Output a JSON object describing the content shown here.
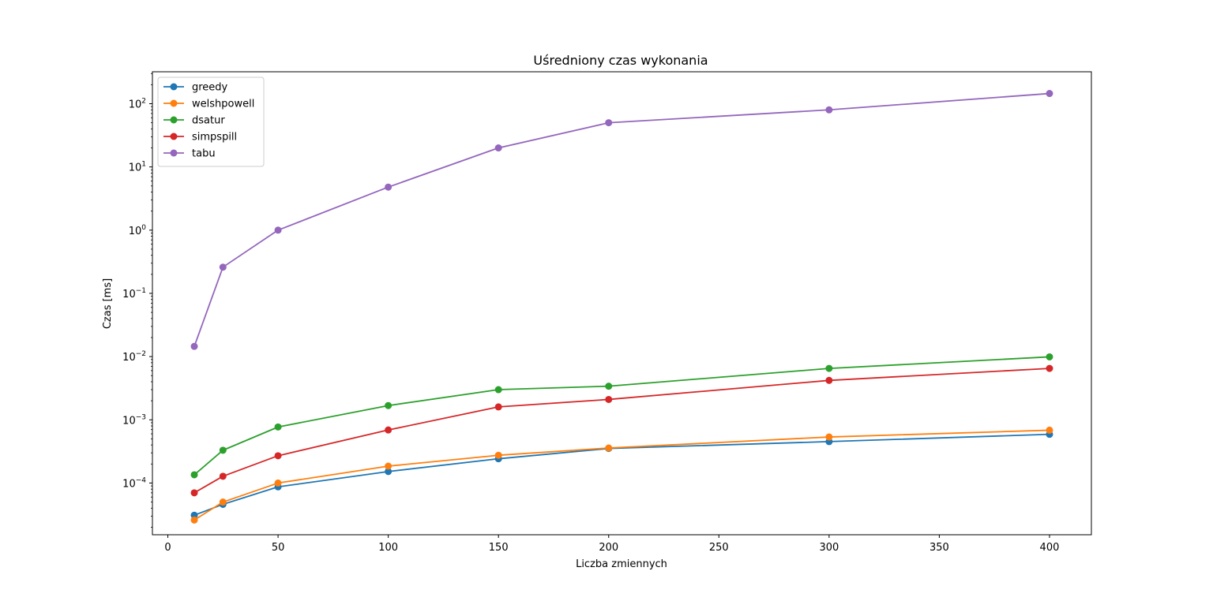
{
  "chart_data": {
    "type": "line",
    "title": "Uśredniony czas wykonania",
    "xlabel": "Liczba zmiennych",
    "ylabel": "Czas [ms]",
    "x": [
      12,
      25,
      50,
      100,
      150,
      200,
      300,
      400
    ],
    "xlim": [
      -7,
      419
    ],
    "ylim": [
      1.52e-05,
      320
    ],
    "yscale": "log",
    "grid": false,
    "legend_position": "top-left",
    "x_ticks": [
      {
        "value": 0,
        "label": "0"
      },
      {
        "value": 50,
        "label": "50"
      },
      {
        "value": 100,
        "label": "100"
      },
      {
        "value": 150,
        "label": "150"
      },
      {
        "value": 200,
        "label": "200"
      },
      {
        "value": 250,
        "label": "250"
      },
      {
        "value": 300,
        "label": "300"
      },
      {
        "value": 350,
        "label": "350"
      },
      {
        "value": 400,
        "label": "400"
      }
    ],
    "y_ticks": [
      {
        "value": 0.0001,
        "base": "10",
        "exp": "−4"
      },
      {
        "value": 0.001,
        "base": "10",
        "exp": "−3"
      },
      {
        "value": 0.01,
        "base": "10",
        "exp": "−2"
      },
      {
        "value": 0.1,
        "base": "10",
        "exp": "−1"
      },
      {
        "value": 1,
        "base": "10",
        "exp": "0"
      },
      {
        "value": 10,
        "base": "10",
        "exp": "1"
      },
      {
        "value": 100,
        "base": "10",
        "exp": "2"
      }
    ],
    "series": [
      {
        "name": "greedy",
        "color": "#1f77b4",
        "values": [
          3.1e-05,
          4.6e-05,
          8.7e-05,
          0.000152,
          0.000242,
          0.000352,
          0.000452,
          0.00059
        ]
      },
      {
        "name": "welshpowell",
        "color": "#ff7f0e",
        "values": [
          2.6e-05,
          5e-05,
          0.0001,
          0.000185,
          0.000275,
          0.000358,
          0.000535,
          0.000685
        ]
      },
      {
        "name": "dsatur",
        "color": "#2ca02c",
        "values": [
          0.000135,
          0.00033,
          0.00077,
          0.00168,
          0.003,
          0.0034,
          0.0065,
          0.0099
        ]
      },
      {
        "name": "simpspill",
        "color": "#d62728",
        "values": [
          7e-05,
          0.000128,
          0.00027,
          0.00069,
          0.0016,
          0.0021,
          0.0042,
          0.0065
        ]
      },
      {
        "name": "tabu",
        "color": "#9467bd",
        "values": [
          0.0145,
          0.26,
          1.0,
          4.8,
          20,
          50,
          80,
          145
        ]
      }
    ]
  }
}
